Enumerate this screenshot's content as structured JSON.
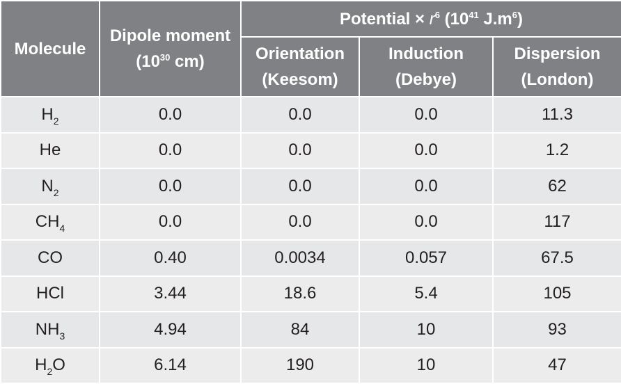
{
  "table": {
    "header": {
      "molecule": [
        "Molecule"
      ],
      "dipole": [
        [
          "Dipole moment"
        ],
        [
          "(10",
          {
            "sup": "30"
          },
          " cm)"
        ]
      ],
      "potential": [
        "Potential × ",
        {
          "it": "r"
        },
        {
          "sup": "6"
        },
        " (10",
        {
          "sup": "41"
        },
        " J.m",
        {
          "sup": "6"
        },
        ")"
      ],
      "columns": [
        [
          [
            "Orientation"
          ],
          [
            "(Keesom)"
          ]
        ],
        [
          [
            "Induction"
          ],
          [
            "(Debye)"
          ]
        ],
        [
          [
            "Dispersion"
          ],
          [
            "(London)"
          ]
        ]
      ]
    },
    "rows": [
      [
        [
          "H",
          {
            "sub": "2"
          }
        ],
        "0.0",
        "0.0",
        "0.0",
        "11.3"
      ],
      [
        [
          "He"
        ],
        "0.0",
        "0.0",
        "0.0",
        "1.2"
      ],
      [
        [
          "N",
          {
            "sub": "2"
          }
        ],
        "0.0",
        "0.0",
        "0.0",
        "62"
      ],
      [
        [
          "CH",
          {
            "sub": "4"
          }
        ],
        "0.0",
        "0.0",
        "0.0",
        "117"
      ],
      [
        [
          "CO"
        ],
        "0.40",
        "0.0034",
        "0.057",
        "67.5"
      ],
      [
        [
          "HCl"
        ],
        "3.44",
        "18.6",
        "5.4",
        "105"
      ],
      [
        [
          "NH",
          {
            "sub": "3"
          }
        ],
        "4.94",
        "84",
        "10",
        "93"
      ],
      [
        [
          "H",
          {
            "sub": "2"
          },
          "O"
        ],
        "6.14",
        "190",
        "10",
        "47"
      ]
    ]
  }
}
